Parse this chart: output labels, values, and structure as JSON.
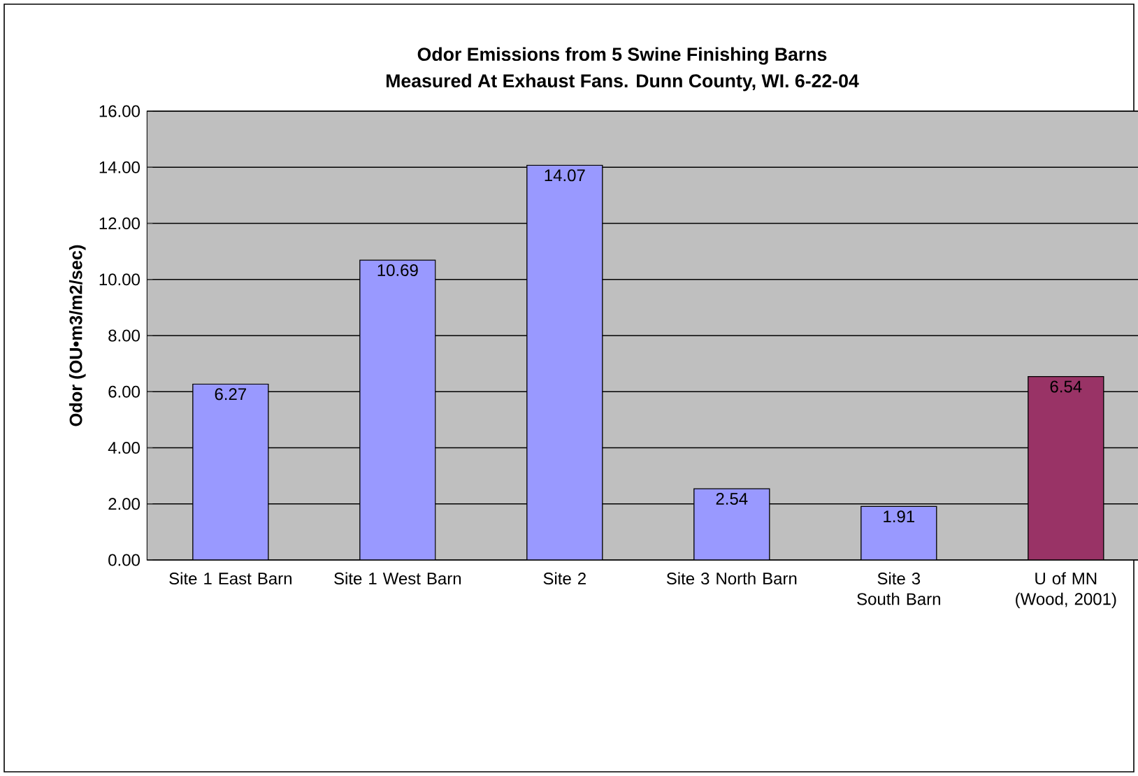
{
  "chart_data": {
    "type": "bar",
    "title": "Odor Emissions from 5 Swine Finishing Barns",
    "subtitle": "Measured At Exhaust Fans.  Dunn County, WI.        6-22-04",
    "ylabel": "Odor (OU•m3/m2/sec)",
    "categories": [
      "Site 1 East Barn",
      "Site 1 West Barn",
      "Site 2",
      "Site 3 North Barn",
      "Site 3 South Barn",
      "U of MN (Wood, 2001)"
    ],
    "values": [
      6.27,
      10.69,
      14.07,
      2.54,
      1.91,
      6.54
    ],
    "colors": [
      "#9999ff",
      "#9999ff",
      "#9999ff",
      "#9999ff",
      "#9999ff",
      "#993366"
    ],
    "ylim": [
      0,
      16
    ],
    "yticks": [
      {
        "value": 0,
        "label": "0.00"
      },
      {
        "value": 2,
        "label": "2.00"
      },
      {
        "value": 4,
        "label": "4.00"
      },
      {
        "value": 6,
        "label": "6.00"
      },
      {
        "value": 8,
        "label": "8.00"
      },
      {
        "value": 10,
        "label": "10.00"
      },
      {
        "value": 12,
        "label": "12.00"
      },
      {
        "value": 14,
        "label": "14.00"
      },
      {
        "value": 16,
        "label": "16.00"
      }
    ],
    "grid": true,
    "data_labels": true
  }
}
